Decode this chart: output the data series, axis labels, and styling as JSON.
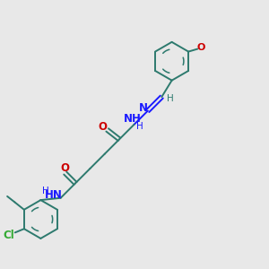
{
  "background_color": "#e8e8e8",
  "bond_color": "#2d7a6e",
  "nitrogen_color": "#1a1aff",
  "oxygen_color": "#cc0000",
  "chlorine_color": "#33aa33",
  "figsize": [
    3.0,
    3.0
  ],
  "dpi": 100,
  "xlim": [
    0,
    10
  ],
  "ylim": [
    0,
    10
  ]
}
